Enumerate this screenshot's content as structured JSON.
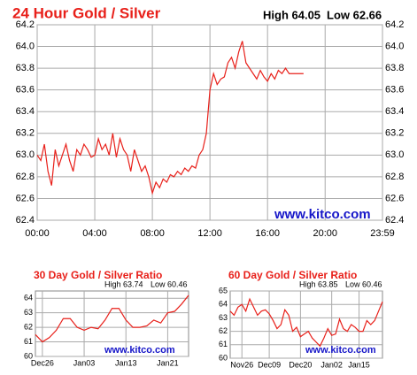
{
  "chart_data": [
    {
      "type": "line",
      "title": "24 Hour Gold / Silver",
      "high": "High 64.05",
      "low": "Low 62.66",
      "watermark": "www.kitco.com",
      "color": "#e8201a",
      "grid": true,
      "x": [
        0,
        0.25,
        0.5,
        0.75,
        1,
        1.25,
        1.5,
        1.75,
        2,
        2.25,
        2.5,
        2.75,
        3,
        3.25,
        3.5,
        3.75,
        4,
        4.25,
        4.5,
        4.75,
        5,
        5.25,
        5.5,
        5.75,
        6,
        6.25,
        6.5,
        6.75,
        7,
        7.25,
        7.5,
        7.75,
        8,
        8.25,
        8.5,
        8.75,
        9,
        9.25,
        9.5,
        9.75,
        10,
        10.25,
        10.5,
        10.75,
        11,
        11.25,
        11.5,
        11.75,
        12,
        12.25,
        12.5,
        12.75,
        13,
        13.25,
        13.5,
        13.75,
        14,
        14.25,
        14.5,
        14.75,
        15,
        15.25,
        15.5,
        15.75,
        16,
        16.25,
        16.5,
        16.75,
        17,
        17.25,
        17.5,
        18,
        18.5
      ],
      "values": [
        63.0,
        62.95,
        63.1,
        62.85,
        62.72,
        63.05,
        62.9,
        63.0,
        63.1,
        62.95,
        62.85,
        63.05,
        63.0,
        63.1,
        63.05,
        62.98,
        63.0,
        63.15,
        63.05,
        63.1,
        63.0,
        63.2,
        62.98,
        63.15,
        63.05,
        63.0,
        62.85,
        63.05,
        62.95,
        62.85,
        62.9,
        62.8,
        62.65,
        62.75,
        62.7,
        62.78,
        62.75,
        62.82,
        62.8,
        62.85,
        62.82,
        62.88,
        62.85,
        62.9,
        62.88,
        63.0,
        63.05,
        63.2,
        63.6,
        63.75,
        63.65,
        63.7,
        63.72,
        63.85,
        63.9,
        63.8,
        63.95,
        64.05,
        63.85,
        63.8,
        63.75,
        63.7,
        63.78,
        63.72,
        63.68,
        63.75,
        63.7,
        63.78,
        63.75,
        63.8,
        63.75,
        63.75,
        63.75
      ],
      "xlim": [
        0,
        23.983
      ],
      "xticks": [
        {
          "value": 0,
          "label": "00:00"
        },
        {
          "value": 4,
          "label": "04:00"
        },
        {
          "value": 8,
          "label": "08:00"
        },
        {
          "value": 12,
          "label": "12:00"
        },
        {
          "value": 16,
          "label": "16:00"
        },
        {
          "value": 20,
          "label": "20:00"
        },
        {
          "value": 23.983,
          "label": "23:59"
        }
      ],
      "ylim": [
        62.4,
        64.2
      ],
      "yticks": [
        62.4,
        62.6,
        62.8,
        {
          "value": 63,
          "label": "63.0"
        },
        63.2,
        63.4,
        63.6,
        63.8,
        {
          "value": 64,
          "label": "64.0"
        },
        64.2
      ]
    },
    {
      "type": "line",
      "title": "30 Day Gold / Silver Ratio",
      "high": "High 63.74",
      "low": "Low 60.46",
      "watermark": "www.kitco.com",
      "color": "#e8201a",
      "grid": true,
      "categories": [
        null,
        "Dec26",
        null,
        null,
        null,
        null,
        null,
        "Jan03",
        null,
        null,
        null,
        null,
        null,
        "Jan13",
        null,
        null,
        null,
        null,
        null,
        "Jan21",
        null,
        null,
        null
      ],
      "values": [
        61.5,
        61.0,
        61.3,
        61.8,
        62.6,
        62.6,
        62.0,
        61.8,
        62.0,
        61.9,
        62.5,
        63.3,
        63.3,
        62.5,
        62.0,
        62.0,
        62.1,
        62.5,
        62.3,
        63.0,
        63.1,
        63.6,
        64.2
      ],
      "ylim": [
        60,
        64.5
      ],
      "yticks": [
        60,
        61,
        62,
        63,
        64
      ]
    },
    {
      "type": "line",
      "title": "60 Day Gold / Silver Ratio",
      "high": "High 63.85",
      "low": "Low 60.46",
      "watermark": "www.kitco.com",
      "color": "#e8201a",
      "grid": true,
      "categories": [
        null,
        null,
        null,
        "Nov26",
        null,
        null,
        null,
        null,
        null,
        null,
        "Dec09",
        null,
        null,
        null,
        null,
        null,
        null,
        null,
        "Dec20",
        null,
        null,
        null,
        null,
        null,
        null,
        null,
        "Jan02",
        null,
        null,
        null,
        null,
        null,
        null,
        "Jan15",
        null,
        null,
        null,
        null,
        null,
        null
      ],
      "values": [
        63.5,
        63.2,
        63.8,
        64.0,
        63.5,
        64.4,
        63.8,
        63.2,
        63.5,
        63.6,
        63.3,
        62.8,
        62.2,
        62.5,
        63.6,
        63.2,
        62.0,
        62.3,
        61.6,
        61.8,
        62.0,
        61.5,
        61.2,
        60.9,
        61.5,
        62.2,
        61.7,
        61.8,
        62.9,
        62.2,
        62.0,
        62.5,
        62.3,
        62.0,
        62.0,
        62.8,
        62.5,
        62.8,
        63.5,
        64.2
      ],
      "ylim": [
        60,
        65
      ],
      "yticks": [
        60,
        61,
        62,
        63,
        64,
        65
      ]
    }
  ]
}
